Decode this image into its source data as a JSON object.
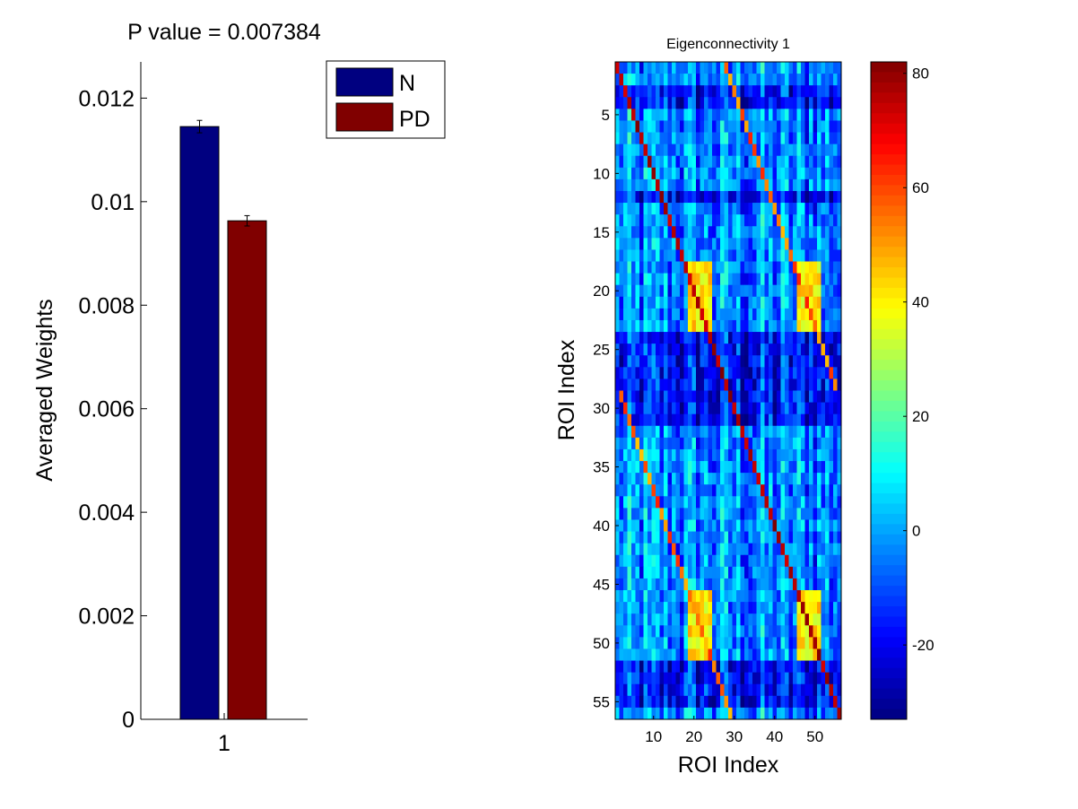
{
  "chart_data": [
    {
      "type": "bar",
      "title": "P value = 0.007384",
      "ylabel": "Averaged Weights",
      "xlabel": "",
      "categories": [
        "1"
      ],
      "series": [
        {
          "name": "N",
          "values": [
            0.01145
          ],
          "error": [
            0.00012
          ],
          "color": "#000080"
        },
        {
          "name": "PD",
          "values": [
            0.00963
          ],
          "error": [
            0.0001
          ],
          "color": "#800000"
        }
      ],
      "ylim": [
        0,
        0.0127
      ],
      "yticks": [
        0,
        0.002,
        0.004,
        0.006,
        0.008,
        0.01,
        0.012
      ],
      "ytick_labels": [
        "0",
        "0.002",
        "0.004",
        "0.006",
        "0.008",
        "0.01",
        "0.012"
      ],
      "legend": {
        "placement": "top-right-outside",
        "entries": [
          "N",
          "PD"
        ]
      }
    },
    {
      "type": "heatmap",
      "title": "Eigenconnectivity 1",
      "xlabel": "ROI Index",
      "ylabel": "ROI Index",
      "n_rows": 56,
      "n_cols": 56,
      "xticks": [
        10,
        20,
        30,
        40,
        50
      ],
      "xtick_labels": [
        "10",
        "20",
        "30",
        "40",
        "50"
      ],
      "yticks": [
        5,
        10,
        15,
        20,
        25,
        30,
        35,
        40,
        45,
        50,
        55
      ],
      "ytick_labels": [
        "5",
        "10",
        "15",
        "20",
        "25",
        "30",
        "35",
        "40",
        "45",
        "50",
        "55"
      ],
      "colormap": "jet",
      "clim": [
        -33,
        82
      ],
      "colorbar": {
        "ticks": [
          -20,
          0,
          20,
          40,
          60,
          80
        ],
        "tick_labels": [
          "-20",
          "0",
          "20",
          "40",
          "60",
          "80"
        ]
      },
      "hot_row_bands": [
        {
          "rows": [
            18,
            23
          ],
          "cols": [
            [
              19,
              24
            ],
            [
              46,
              51
            ]
          ],
          "value": 50
        },
        {
          "rows": [
            46,
            51
          ],
          "cols": [
            [
              19,
              24
            ],
            [
              46,
              51
            ]
          ],
          "value": 50
        }
      ],
      "cool_row_bands": [
        3,
        4,
        12,
        24,
        25,
        26,
        27,
        28,
        29,
        30,
        31,
        52,
        53,
        54,
        55
      ],
      "diagonal_value": 82
    }
  ]
}
